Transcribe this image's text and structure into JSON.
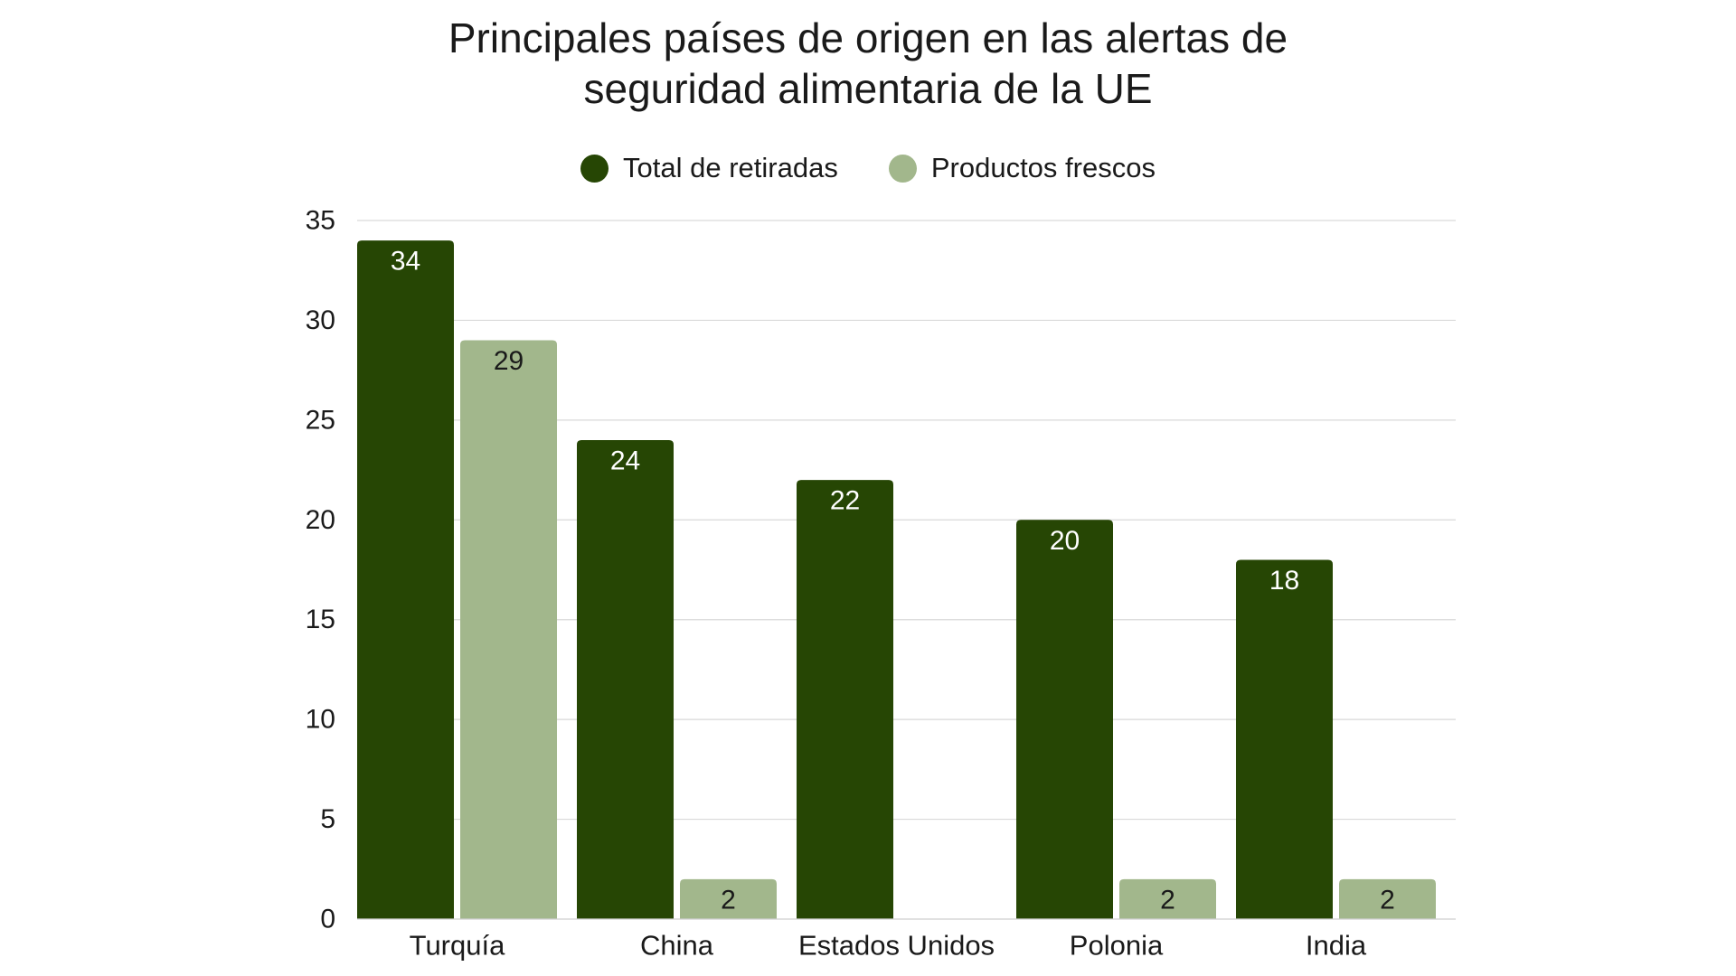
{
  "chart_data": {
    "type": "bar",
    "title_lines": [
      "Principales países de origen en las alertas de",
      "seguridad alimentaria de la UE"
    ],
    "categories": [
      "Turquía",
      "China",
      "Estados Unidos",
      "Polonia",
      "India"
    ],
    "series": [
      {
        "name": "Total de retiradas",
        "color": "#264604",
        "label_color": "#ffffff",
        "values": [
          34,
          24,
          22,
          20,
          18
        ]
      },
      {
        "name": "Productos frescos",
        "color": "#a2b78c",
        "label_color": "#1a1a1a",
        "values": [
          29,
          2,
          null,
          2,
          2
        ]
      }
    ],
    "ylim": [
      0,
      35
    ],
    "yticks": [
      0,
      5,
      10,
      15,
      20,
      25,
      30,
      35
    ],
    "legend_position": "top-center",
    "grid": true
  }
}
